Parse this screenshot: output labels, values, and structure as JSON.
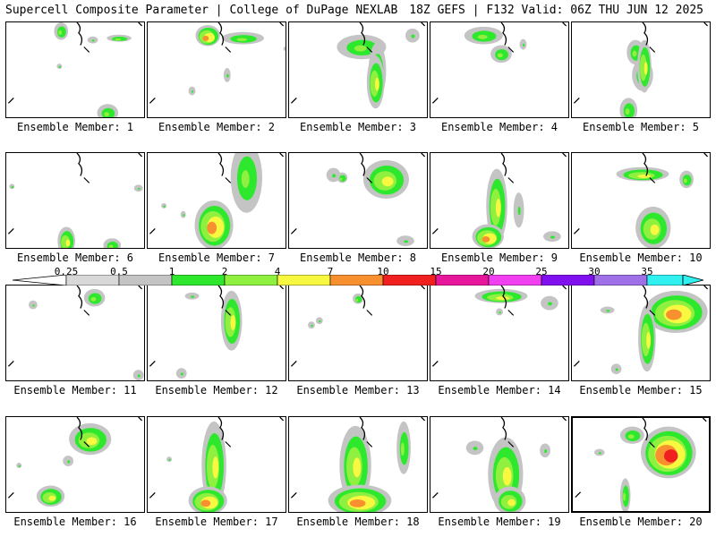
{
  "header": {
    "title": "Supercell Composite Parameter | College of DuPage NEXLAB",
    "run_info": "18Z GEFS | F132 Valid: 06Z THU JUN 12 2025"
  },
  "legend": {
    "labels": [
      "0.25",
      "0.5",
      "1",
      "2",
      "4",
      "7",
      "10",
      "15",
      "20",
      "25",
      "30",
      "35"
    ],
    "colors": {
      "light_gray": "#d8d8d8",
      "gray": "#c4c4c4",
      "green": "#2ee82e",
      "light_green": "#90f040",
      "yellow": "#f8f840",
      "orange": "#f89030",
      "red": "#f02020",
      "dark_red": "#c81010",
      "magenta": "#e8169a",
      "pink": "#f040f0",
      "purple": "#8010f0",
      "lavender": "#a070e8",
      "cyan": "#30f0f0"
    }
  },
  "members": [
    {
      "label": "Ensemble Member: 1"
    },
    {
      "label": "Ensemble Member: 2"
    },
    {
      "label": "Ensemble Member: 3"
    },
    {
      "label": "Ensemble Member: 4"
    },
    {
      "label": "Ensemble Member: 5"
    },
    {
      "label": "Ensemble Member: 6"
    },
    {
      "label": "Ensemble Member: 7"
    },
    {
      "label": "Ensemble Member: 8"
    },
    {
      "label": "Ensemble Member: 9"
    },
    {
      "label": "Ensemble Member: 10"
    },
    {
      "label": "Ensemble Member: 11"
    },
    {
      "label": "Ensemble Member: 12"
    },
    {
      "label": "Ensemble Member: 13"
    },
    {
      "label": "Ensemble Member: 14"
    },
    {
      "label": "Ensemble Member: 15"
    },
    {
      "label": "Ensemble Member: 16"
    },
    {
      "label": "Ensemble Member: 17"
    },
    {
      "label": "Ensemble Member: 18"
    },
    {
      "label": "Ensemble Member: 19"
    },
    {
      "label": "Ensemble Member: 20",
      "highlighted": true
    }
  ]
}
